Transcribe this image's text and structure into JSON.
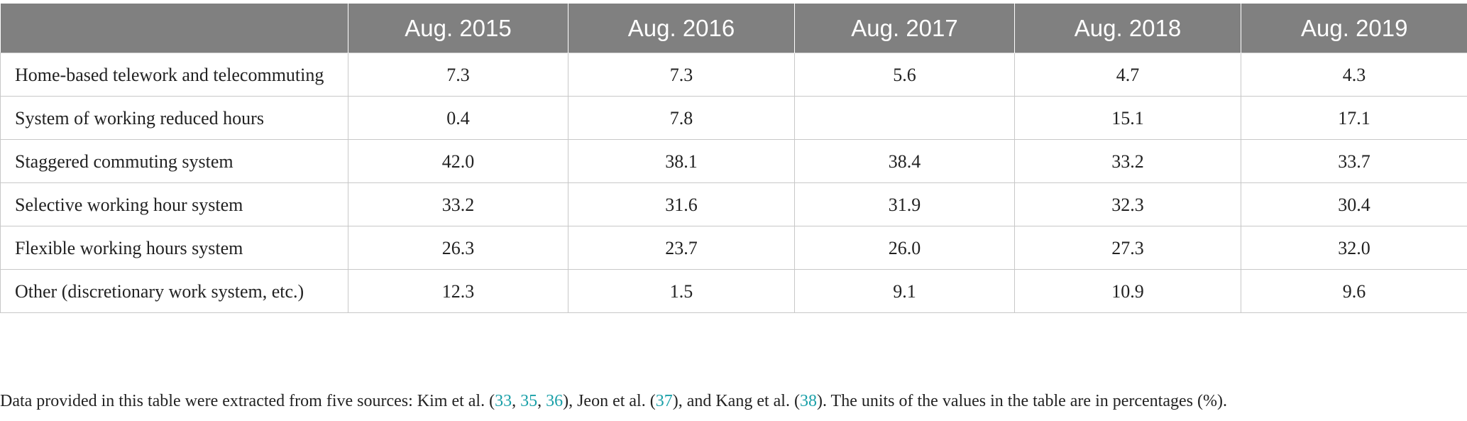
{
  "table": {
    "header": [
      "Aug. 2015",
      "Aug. 2016",
      "Aug. 2017",
      "Aug. 2018",
      "Aug. 2019"
    ],
    "rows": [
      {
        "label": "Home-based telework and telecommuting",
        "cells": [
          "7.3",
          "7.3",
          "5.6",
          "4.7",
          "4.3"
        ]
      },
      {
        "label": "System of working reduced hours",
        "cells": [
          "0.4",
          "7.8",
          null,
          "15.1",
          "17.1"
        ]
      },
      {
        "label": "Staggered commuting system",
        "cells": [
          "42.0",
          "38.1",
          "38.4",
          "33.2",
          "33.7"
        ]
      },
      {
        "label": "Selective working hour system",
        "cells": [
          "33.2",
          "31.6",
          "31.9",
          "32.3",
          "30.4"
        ]
      },
      {
        "label": "Flexible working hours system",
        "cells": [
          "26.3",
          "23.7",
          "26.0",
          "27.3",
          "32.0"
        ]
      },
      {
        "label": "Other (discretionary work system, etc.)",
        "cells": [
          "12.3",
          "1.5",
          "9.1",
          "10.9",
          "9.6"
        ]
      }
    ]
  },
  "footnote": [
    {
      "text": "Data provided in this table were extracted from five sources: Kim et al. ("
    },
    {
      "link": "33"
    },
    {
      "text": ", "
    },
    {
      "link": "35"
    },
    {
      "text": ", "
    },
    {
      "link": "36"
    },
    {
      "text": "), Jeon et al. ("
    },
    {
      "link": "37"
    },
    {
      "text": "), and Kang et al. ("
    },
    {
      "link": "38"
    },
    {
      "text": "). The units of the values in the table are in percentages (%)."
    }
  ]
}
